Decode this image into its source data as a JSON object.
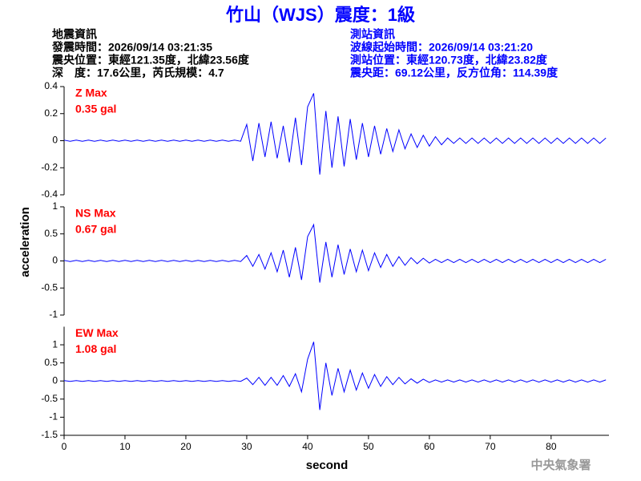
{
  "header": {
    "title": "竹山（WJS）震度：1級",
    "left": [
      "地震資訊",
      "發震時間：2026/09/14 03:21:35",
      "震央位置：東經121.35度，北緯23.56度",
      "深　度：17.6公里，芮氏規模：4.7"
    ],
    "right": [
      "測站資訊",
      "波線起始時間：2026/09/14 03:21:20",
      "測站位置：東經120.73度，北緯23.82度",
      "震央距：69.12公里，反方位角：114.39度"
    ]
  },
  "footer": "中央氣象署",
  "chart_data": {
    "type": "line",
    "xlabel": "second",
    "ylabel": "acceleration",
    "xlim": [
      0,
      89.5
    ],
    "xticks": [
      0,
      10,
      20,
      30,
      40,
      50,
      60,
      70,
      80
    ],
    "x": [
      0,
      1,
      2,
      3,
      4,
      5,
      6,
      7,
      8,
      9,
      10,
      11,
      12,
      13,
      14,
      15,
      16,
      17,
      18,
      19,
      20,
      21,
      22,
      23,
      24,
      25,
      26,
      27,
      28,
      29,
      30,
      31,
      32,
      33,
      34,
      35,
      36,
      37,
      38,
      39,
      40,
      41,
      42,
      43,
      44,
      45,
      46,
      47,
      48,
      49,
      50,
      51,
      52,
      53,
      54,
      55,
      56,
      57,
      58,
      59,
      60,
      61,
      62,
      63,
      64,
      65,
      66,
      67,
      68,
      69,
      70,
      71,
      72,
      73,
      74,
      75,
      76,
      77,
      78,
      79,
      80,
      81,
      82,
      83,
      84,
      85,
      86,
      87,
      88,
      89
    ],
    "panels": [
      {
        "name": "Z Max",
        "max_label": "0.35 gal",
        "color": "#0000ff",
        "ylim": [
          -0.4,
          0.4
        ],
        "yticks": [
          0.4,
          0.2,
          0,
          -0.2,
          -0.4
        ],
        "values": [
          0.004,
          -0.004,
          0.004,
          -0.004,
          0.004,
          -0.004,
          0.004,
          -0.004,
          0.004,
          -0.004,
          0.004,
          -0.004,
          0.004,
          -0.004,
          0.004,
          -0.004,
          0.004,
          -0.004,
          0.004,
          -0.004,
          0.004,
          -0.004,
          0.004,
          -0.004,
          0.004,
          -0.004,
          0.004,
          -0.004,
          0.004,
          -0.004,
          0.12,
          -0.15,
          0.13,
          -0.12,
          0.14,
          -0.13,
          0.11,
          -0.16,
          0.17,
          -0.18,
          0.25,
          0.35,
          -0.25,
          0.22,
          -0.2,
          0.18,
          -0.19,
          0.16,
          -0.14,
          0.13,
          -0.12,
          0.11,
          -0.1,
          0.09,
          -0.08,
          0.08,
          -0.06,
          0.05,
          -0.05,
          0.04,
          -0.04,
          0.03,
          -0.03,
          0.02,
          -0.02,
          0.02,
          -0.02,
          0.02,
          -0.02,
          0.02,
          -0.02,
          0.02,
          -0.02,
          0.02,
          -0.02,
          0.02,
          -0.02,
          0.02,
          -0.02,
          0.02,
          -0.02,
          0.02,
          -0.02,
          0.02,
          -0.02,
          0.02,
          -0.02,
          0.02,
          -0.02,
          0.02
        ]
      },
      {
        "name": "NS Max",
        "max_label": "0.67 gal",
        "color": "#0000ff",
        "ylim": [
          -1,
          1
        ],
        "yticks": [
          1,
          0.5,
          0,
          -0.5,
          -1
        ],
        "values": [
          0.01,
          -0.01,
          0.01,
          -0.01,
          0.01,
          -0.01,
          0.01,
          -0.01,
          0.01,
          -0.01,
          0.01,
          -0.01,
          0.01,
          -0.01,
          0.01,
          -0.01,
          0.01,
          -0.01,
          0.01,
          -0.01,
          0.01,
          -0.01,
          0.01,
          -0.01,
          0.01,
          -0.01,
          0.01,
          -0.01,
          0.01,
          -0.01,
          0.1,
          -0.1,
          0.12,
          -0.15,
          0.15,
          -0.2,
          0.2,
          -0.3,
          0.25,
          -0.35,
          0.45,
          0.67,
          -0.4,
          0.35,
          -0.3,
          0.3,
          -0.25,
          0.22,
          -0.2,
          0.2,
          -0.18,
          0.15,
          -0.12,
          0.12,
          -0.1,
          0.08,
          -0.08,
          0.06,
          -0.05,
          0.05,
          -0.04,
          0.03,
          -0.03,
          0.03,
          -0.03,
          0.03,
          -0.03,
          0.03,
          -0.03,
          0.03,
          -0.03,
          0.03,
          -0.03,
          0.03,
          -0.03,
          0.03,
          -0.03,
          0.03,
          -0.03,
          0.03,
          -0.03,
          0.03,
          -0.03,
          0.03,
          -0.03,
          0.03,
          -0.03,
          0.03,
          -0.03,
          0.03
        ]
      },
      {
        "name": "EW Max",
        "max_label": "1.08 gal",
        "color": "#0000ff",
        "ylim": [
          -1.5,
          1.5
        ],
        "yticks": [
          1,
          0.5,
          0,
          -0.5,
          -1,
          -1.5
        ],
        "values": [
          0.01,
          -0.01,
          0.01,
          -0.01,
          0.01,
          -0.01,
          0.01,
          -0.01,
          0.01,
          -0.01,
          0.01,
          -0.01,
          0.01,
          -0.01,
          0.01,
          -0.01,
          0.01,
          -0.01,
          0.01,
          -0.01,
          0.01,
          -0.01,
          0.01,
          -0.01,
          0.01,
          -0.01,
          0.01,
          -0.01,
          0.01,
          -0.01,
          0.08,
          -0.1,
          0.1,
          -0.12,
          0.1,
          -0.12,
          0.15,
          -0.15,
          0.2,
          -0.3,
          0.6,
          1.08,
          -0.8,
          0.5,
          -0.4,
          0.35,
          -0.3,
          0.3,
          -0.25,
          0.22,
          -0.2,
          0.18,
          -0.15,
          0.12,
          -0.1,
          0.1,
          -0.08,
          0.06,
          -0.06,
          0.05,
          -0.04,
          0.03,
          -0.03,
          0.03,
          -0.03,
          0.03,
          -0.03,
          0.03,
          -0.03,
          0.03,
          -0.03,
          0.03,
          -0.03,
          0.03,
          -0.03,
          0.03,
          -0.03,
          0.03,
          -0.03,
          0.03,
          -0.03,
          0.03,
          -0.03,
          0.03,
          -0.03,
          0.03,
          -0.03,
          0.03,
          -0.03,
          0.03
        ]
      }
    ]
  }
}
